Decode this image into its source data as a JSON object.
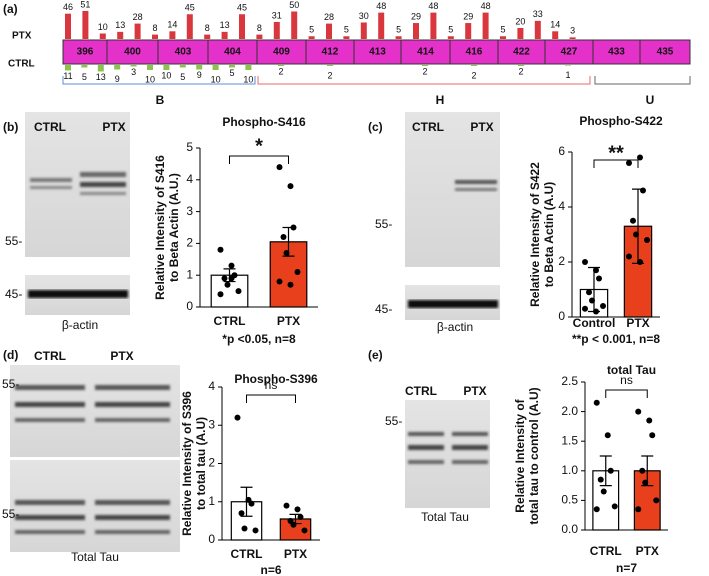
{
  "panels": [
    "(a)",
    "(b)",
    "(c)",
    "(d)",
    "(e)"
  ],
  "map": {
    "ptx_label": "PTX",
    "ctrl_label": "CTRL",
    "sites": [
      "396",
      "400",
      "403",
      "404",
      "409",
      "412",
      "413",
      "414",
      "416",
      "422",
      "427",
      "433",
      "435"
    ],
    "ptx_counts": [
      46,
      51,
      10,
      13,
      28,
      8,
      14,
      45,
      8,
      13,
      45,
      8,
      31,
      50,
      5,
      28,
      5,
      30,
      48,
      5,
      29,
      48,
      5,
      29,
      48,
      5,
      20,
      33,
      14,
      3
    ],
    "ctrl_counts": [
      11,
      5,
      13,
      9,
      3,
      10,
      10,
      5,
      9,
      10,
      5,
      10,
      2,
      2,
      2,
      2,
      2,
      1
    ],
    "regions": [
      "B",
      "H",
      "U"
    ]
  },
  "blots": [
    {
      "lanes": [
        "CTRL",
        "PTX"
      ],
      "markers": [
        "55-",
        "45-"
      ],
      "caption": "β-actin"
    },
    {
      "lanes": [
        "CTRL",
        "PTX"
      ],
      "markers": [
        "55-",
        "45-"
      ],
      "caption": "β-actin"
    },
    {
      "lanes": [
        "CTRL",
        "PTX"
      ],
      "markers": [
        "55-",
        "55-"
      ],
      "caption": "Total Tau"
    },
    {
      "lanes": [
        "CTRL",
        "PTX"
      ],
      "markers": [
        "55-"
      ],
      "caption": "Total Tau"
    }
  ],
  "chart_data": [
    {
      "type": "bar",
      "title": "Phospho-S416",
      "ylabel": [
        "Relative Intensity of S416",
        "to Beta Actin (A.U.)"
      ],
      "categories": [
        "CTRL",
        "PTX"
      ],
      "values": [
        1.0,
        2.05
      ],
      "errors": [
        0.2,
        0.45
      ],
      "points": [
        [
          1.8,
          1.3,
          1.0,
          0.9,
          0.7,
          0.5,
          0.4,
          0.9
        ],
        [
          4.4,
          3.8,
          2.5,
          2.2,
          1.7,
          1.1,
          0.8,
          0.7
        ]
      ],
      "colors": [
        "#ffffff",
        "#e8401c"
      ],
      "ylim": [
        0,
        5
      ],
      "yticks": [
        0,
        1,
        2,
        3,
        4,
        5
      ],
      "significance": "*",
      "footnote": "*p <0.05, n=8"
    },
    {
      "type": "bar",
      "title": "Phospho-S422",
      "ylabel": [
        "Relative Intensity of S422",
        "to Beta Actin (A.U)"
      ],
      "categories": [
        "Control",
        "PTX"
      ],
      "values": [
        1.0,
        3.3
      ],
      "errors": [
        0.8,
        1.35
      ],
      "points": [
        [
          2.0,
          1.7,
          1.4,
          0.9,
          0.6,
          0.4,
          0.3,
          0.2
        ],
        [
          5.6,
          5.8,
          4.6,
          3.5,
          3.0,
          2.8,
          2.2,
          2.0
        ]
      ],
      "colors": [
        "#ffffff",
        "#e8401c"
      ],
      "ylim": [
        0,
        6
      ],
      "yticks": [
        0,
        2,
        4,
        6
      ],
      "significance": "**",
      "footnote": "**p < 0.001, n=8"
    },
    {
      "type": "bar",
      "title": "Phospho-S396",
      "ylabel": [
        "Relative Intensity of S396",
        "to total tau (A.U)"
      ],
      "categories": [
        "CTRL",
        "PTX"
      ],
      "values": [
        1.0,
        0.55
      ],
      "errors": [
        0.38,
        0.12
      ],
      "points": [
        [
          3.2,
          1.05,
          0.95,
          0.7,
          0.3,
          0.25
        ],
        [
          0.9,
          0.8,
          0.6,
          0.5,
          0.4,
          0.25
        ]
      ],
      "colors": [
        "#ffffff",
        "#e8401c"
      ],
      "ylim": [
        0,
        4
      ],
      "yticks": [
        0,
        1,
        2,
        3,
        4
      ],
      "significance": "ns",
      "footnote": "n=6"
    },
    {
      "type": "bar",
      "title": "total Tau",
      "ylabel": [
        "Relative Intensity of",
        "total tau to control (A.U)"
      ],
      "categories": [
        "CTRL",
        "PTX"
      ],
      "values": [
        1.0,
        1.0
      ],
      "errors": [
        0.25,
        0.25
      ],
      "points": [
        [
          2.15,
          1.6,
          1.0,
          0.85,
          0.65,
          0.4,
          0.35
        ],
        [
          2.0,
          1.85,
          1.6,
          1.0,
          0.8,
          0.5,
          0.35
        ]
      ],
      "colors": [
        "#ffffff",
        "#e8401c"
      ],
      "ylim": [
        0,
        2.5
      ],
      "yticks": [
        {
          "value": 0,
          "label": "0.0"
        },
        {
          "value": 0.5,
          "label": "0.5"
        },
        {
          "value": 1,
          "label": "1.0"
        },
        {
          "value": 1.5,
          "label": "1.5"
        },
        {
          "value": 2,
          "label": "2.0"
        },
        {
          "value": 2.5,
          "label": "2.5"
        }
      ],
      "significance": "ns",
      "footnote": "n=7"
    }
  ]
}
